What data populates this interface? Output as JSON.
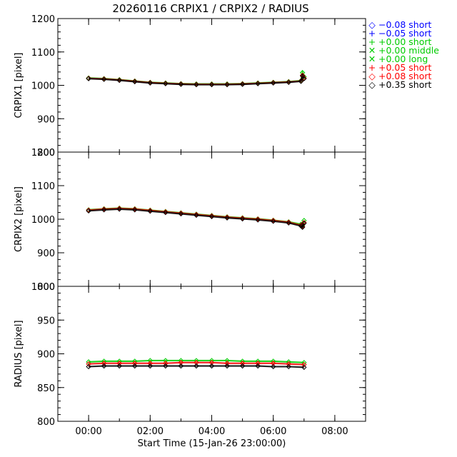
{
  "title": "20260116 CRPIX1 / CRPIX2 / RADIUS",
  "legend": [
    {
      "symbol": "◇",
      "label": "−0.08 short",
      "color": "#0000ff"
    },
    {
      "symbol": "+",
      "label": "−0.05 short",
      "color": "#0000ff"
    },
    {
      "symbol": "+",
      "label": "+0.00 short",
      "color": "#00cc00"
    },
    {
      "symbol": "✕",
      "label": "+0.00 middle",
      "color": "#00cc00"
    },
    {
      "symbol": "✕",
      "label": "+0.00 long",
      "color": "#00cc00"
    },
    {
      "symbol": "+",
      "label": "+0.05 short",
      "color": "#ff0000"
    },
    {
      "symbol": "◇",
      "label": "+0.08 short",
      "color": "#ff0000"
    },
    {
      "symbol": "◇",
      "label": "+0.35 short",
      "color": "#000000"
    }
  ],
  "chart_data": [
    {
      "type": "scatter",
      "ylabel": "CRPIX1 [pixel]",
      "ylim": [
        800,
        1200
      ],
      "yticks": [
        "800",
        "900",
        "1000",
        "1100",
        "1200"
      ],
      "xlim": [
        -1,
        9
      ],
      "x_hours": [
        0.0,
        0.5,
        1.0,
        1.5,
        2.0,
        2.5,
        3.0,
        3.5,
        4.0,
        4.5,
        5.0,
        5.5,
        6.0,
        6.5,
        6.9,
        6.95,
        7.0
      ],
      "series": [
        {
          "name": "+0.00 short",
          "color": "#00cc00",
          "values": [
            1022,
            1020,
            1017,
            1013,
            1009,
            1007,
            1005,
            1004,
            1004,
            1004,
            1005,
            1007,
            1009,
            1011,
            1014,
            1038,
            1026
          ]
        },
        {
          "name": "+0.05 short",
          "color": "#ff0000",
          "values": [
            1021,
            1019,
            1016,
            1012,
            1008,
            1006,
            1004,
            1003,
            1003,
            1003,
            1004,
            1006,
            1008,
            1010,
            1013,
            1030,
            1022
          ]
        },
        {
          "name": "+0.35 short",
          "color": "#000000",
          "values": [
            1020,
            1018,
            1015,
            1011,
            1007,
            1005,
            1003,
            1002,
            1002,
            1002,
            1003,
            1005,
            1007,
            1009,
            1012,
            1028,
            1020
          ]
        }
      ]
    },
    {
      "type": "scatter",
      "ylabel": "CRPIX2 [pixel]",
      "ylim": [
        800,
        1200
      ],
      "yticks": [
        "800",
        "900",
        "1000",
        "1100",
        "1200"
      ],
      "xlim": [
        -1,
        9
      ],
      "x_hours": [
        0.0,
        0.5,
        1.0,
        1.5,
        2.0,
        2.5,
        3.0,
        3.5,
        4.0,
        4.5,
        5.0,
        5.5,
        6.0,
        6.5,
        6.9,
        6.95,
        7.0
      ],
      "series": [
        {
          "name": "+0.00 short",
          "color": "#00cc00",
          "values": [
            1028,
            1031,
            1033,
            1031,
            1027,
            1023,
            1019,
            1015,
            1011,
            1007,
            1004,
            1001,
            997,
            992,
            985,
            980,
            996
          ]
        },
        {
          "name": "+0.05 short",
          "color": "#ff0000",
          "values": [
            1027,
            1030,
            1032,
            1030,
            1026,
            1022,
            1018,
            1014,
            1010,
            1006,
            1003,
            1000,
            996,
            991,
            982,
            978,
            990
          ]
        },
        {
          "name": "+0.35 short",
          "color": "#000000",
          "values": [
            1025,
            1028,
            1030,
            1028,
            1024,
            1020,
            1016,
            1012,
            1008,
            1004,
            1001,
            998,
            994,
            989,
            980,
            976,
            988
          ]
        }
      ]
    },
    {
      "type": "scatter",
      "ylabel": "RADIUS [pixel]",
      "ylim": [
        800,
        1000
      ],
      "yticks": [
        "800",
        "850",
        "900",
        "950",
        "1000"
      ],
      "xlim": [
        -1,
        9
      ],
      "xlabel": "Start Time (15-Jan-26 23:00:00)",
      "xticks": [
        "00:00",
        "02:00",
        "04:00",
        "06:00",
        "08:00"
      ],
      "xtick_hours": [
        0,
        2,
        4,
        6,
        8
      ],
      "x_hours": [
        0.0,
        0.5,
        1.0,
        1.5,
        2.0,
        2.5,
        3.0,
        3.5,
        4.0,
        4.5,
        5.0,
        5.5,
        6.0,
        6.5,
        7.0
      ],
      "series": [
        {
          "name": "+0.00 short",
          "color": "#00cc00",
          "values": [
            888,
            889,
            889,
            889,
            890,
            890,
            890,
            890,
            890,
            890,
            889,
            889,
            889,
            888,
            887
          ]
        },
        {
          "name": "+0.05 short",
          "color": "#ff0000",
          "values": [
            885,
            886,
            886,
            886,
            886,
            886,
            887,
            887,
            887,
            886,
            886,
            886,
            886,
            885,
            884
          ]
        },
        {
          "name": "+0.35 short",
          "color": "#000000",
          "values": [
            881,
            882,
            882,
            882,
            882,
            882,
            882,
            882,
            882,
            882,
            882,
            882,
            881,
            881,
            880
          ]
        }
      ]
    }
  ]
}
